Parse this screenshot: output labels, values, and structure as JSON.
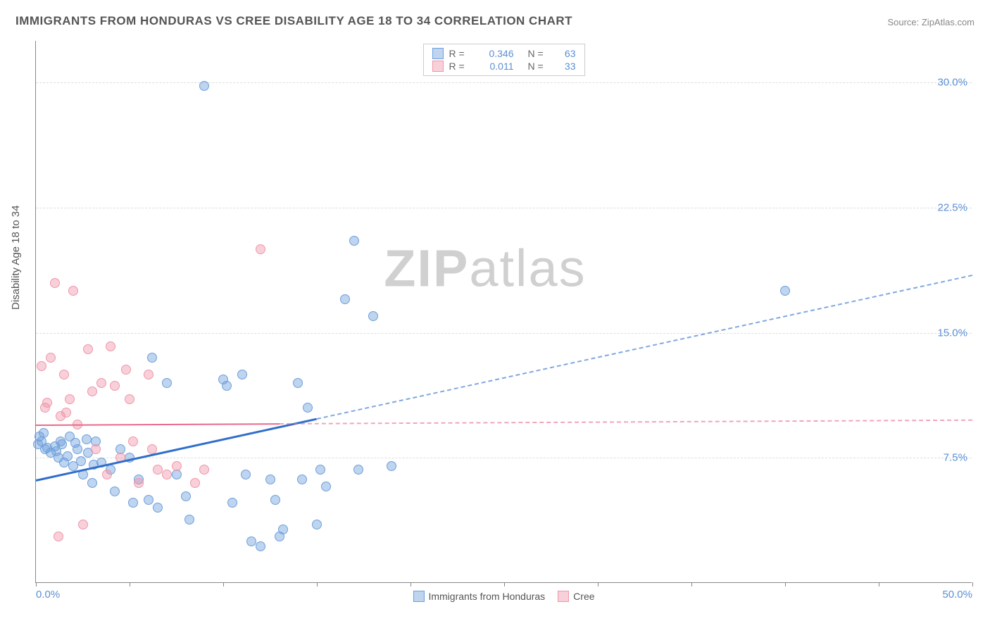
{
  "title": "IMMIGRANTS FROM HONDURAS VS CREE DISABILITY AGE 18 TO 34 CORRELATION CHART",
  "source": "Source: ZipAtlas.com",
  "ylabel": "Disability Age 18 to 34",
  "watermark_a": "ZIP",
  "watermark_b": "atlas",
  "chart": {
    "type": "scatter",
    "xlim": [
      0,
      50
    ],
    "ylim": [
      0,
      32.5
    ],
    "yticks": [
      7.5,
      15.0,
      22.5,
      30.0
    ],
    "ytick_labels": [
      "7.5%",
      "15.0%",
      "22.5%",
      "30.0%"
    ],
    "xtick_positions": [
      0,
      5,
      10,
      15,
      20,
      25,
      30,
      35,
      40,
      45,
      50
    ],
    "xtick_labels_visible": {
      "0": "0.0%",
      "50": "50.0%"
    },
    "background_color": "#ffffff",
    "grid_color": "#dddddd",
    "axis_color": "#888888",
    "series": [
      {
        "name": "Immigrants from Honduras",
        "color_fill": "rgba(110,160,220,0.45)",
        "color_stroke": "#6ea0dc",
        "marker_size": 14,
        "R": "0.346",
        "N": "63",
        "trend": {
          "x1": 0,
          "y1": 6.2,
          "x2": 50,
          "y2": 18.5,
          "color": "#2f6ecc",
          "width": 2.5,
          "solid_until_x": 15
        },
        "points": [
          [
            0.5,
            8.0
          ],
          [
            0.8,
            7.8
          ],
          [
            1.0,
            8.2
          ],
          [
            1.2,
            7.5
          ],
          [
            1.3,
            8.5
          ],
          [
            1.5,
            7.2
          ],
          [
            1.8,
            8.8
          ],
          [
            2.0,
            7.0
          ],
          [
            2.2,
            8.0
          ],
          [
            2.5,
            6.5
          ],
          [
            2.8,
            7.8
          ],
          [
            3.0,
            6.0
          ],
          [
            3.2,
            8.5
          ],
          [
            3.5,
            7.2
          ],
          [
            4.0,
            6.8
          ],
          [
            4.2,
            5.5
          ],
          [
            4.5,
            8.0
          ],
          [
            5.0,
            7.5
          ],
          [
            5.2,
            4.8
          ],
          [
            5.5,
            6.2
          ],
          [
            6.0,
            5.0
          ],
          [
            6.2,
            13.5
          ],
          [
            6.5,
            4.5
          ],
          [
            7.0,
            12.0
          ],
          [
            7.5,
            6.5
          ],
          [
            8.0,
            5.2
          ],
          [
            8.2,
            3.8
          ],
          [
            9.0,
            29.8
          ],
          [
            10.0,
            12.2
          ],
          [
            10.2,
            11.8
          ],
          [
            10.5,
            4.8
          ],
          [
            11.0,
            12.5
          ],
          [
            11.2,
            6.5
          ],
          [
            11.5,
            2.5
          ],
          [
            12.0,
            2.2
          ],
          [
            12.5,
            6.2
          ],
          [
            12.8,
            5.0
          ],
          [
            13.0,
            2.8
          ],
          [
            13.2,
            3.2
          ],
          [
            14.0,
            12.0
          ],
          [
            14.2,
            6.2
          ],
          [
            14.5,
            10.5
          ],
          [
            15.0,
            3.5
          ],
          [
            15.2,
            6.8
          ],
          [
            15.5,
            5.8
          ],
          [
            16.5,
            17.0
          ],
          [
            17.0,
            20.5
          ],
          [
            17.2,
            6.8
          ],
          [
            18.0,
            16.0
          ],
          [
            19.0,
            7.0
          ],
          [
            40.0,
            17.5
          ],
          [
            0.3,
            8.5
          ],
          [
            0.6,
            8.1
          ],
          [
            1.1,
            7.9
          ],
          [
            1.4,
            8.3
          ],
          [
            1.7,
            7.6
          ],
          [
            2.1,
            8.4
          ],
          [
            2.4,
            7.3
          ],
          [
            2.7,
            8.6
          ],
          [
            3.1,
            7.1
          ],
          [
            0.4,
            9.0
          ],
          [
            0.2,
            8.8
          ],
          [
            0.1,
            8.3
          ]
        ]
      },
      {
        "name": "Cree",
        "color_fill": "rgba(240,150,170,0.45)",
        "color_stroke": "#f096aa",
        "marker_size": 14,
        "R": "0.011",
        "N": "33",
        "trend": {
          "x1": 0,
          "y1": 9.5,
          "x2": 50,
          "y2": 9.8,
          "color": "#e86b8a",
          "width": 2,
          "solid_until_x": 13
        },
        "points": [
          [
            0.5,
            10.5
          ],
          [
            0.8,
            13.5
          ],
          [
            1.0,
            18.0
          ],
          [
            1.3,
            10.0
          ],
          [
            1.5,
            12.5
          ],
          [
            1.8,
            11.0
          ],
          [
            2.0,
            17.5
          ],
          [
            2.2,
            9.5
          ],
          [
            2.5,
            3.5
          ],
          [
            2.8,
            14.0
          ],
          [
            3.0,
            11.5
          ],
          [
            3.2,
            8.0
          ],
          [
            3.5,
            12.0
          ],
          [
            3.8,
            6.5
          ],
          [
            4.0,
            14.2
          ],
          [
            4.2,
            11.8
          ],
          [
            4.5,
            7.5
          ],
          [
            4.8,
            12.8
          ],
          [
            5.0,
            11.0
          ],
          [
            5.2,
            8.5
          ],
          [
            5.5,
            6.0
          ],
          [
            6.0,
            12.5
          ],
          [
            6.2,
            8.0
          ],
          [
            6.5,
            6.8
          ],
          [
            7.0,
            6.5
          ],
          [
            7.5,
            7.0
          ],
          [
            8.5,
            6.0
          ],
          [
            9.0,
            6.8
          ],
          [
            12.0,
            20.0
          ],
          [
            1.2,
            2.8
          ],
          [
            0.3,
            13.0
          ],
          [
            0.6,
            10.8
          ],
          [
            1.6,
            10.2
          ]
        ]
      }
    ],
    "legend_top": [
      {
        "swatch_fill": "rgba(110,160,220,0.45)",
        "swatch_stroke": "#6ea0dc",
        "R_label": "R =",
        "R_val": "0.346",
        "N_label": "N =",
        "N_val": "63"
      },
      {
        "swatch_fill": "rgba(240,150,170,0.45)",
        "swatch_stroke": "#f096aa",
        "R_label": "R =",
        "R_val": "0.011",
        "N_label": "N =",
        "N_val": "33"
      }
    ],
    "legend_bottom": [
      {
        "swatch_fill": "rgba(110,160,220,0.45)",
        "swatch_stroke": "#6ea0dc",
        "label": "Immigrants from Honduras"
      },
      {
        "swatch_fill": "rgba(240,150,170,0.45)",
        "swatch_stroke": "#f096aa",
        "label": "Cree"
      }
    ]
  }
}
